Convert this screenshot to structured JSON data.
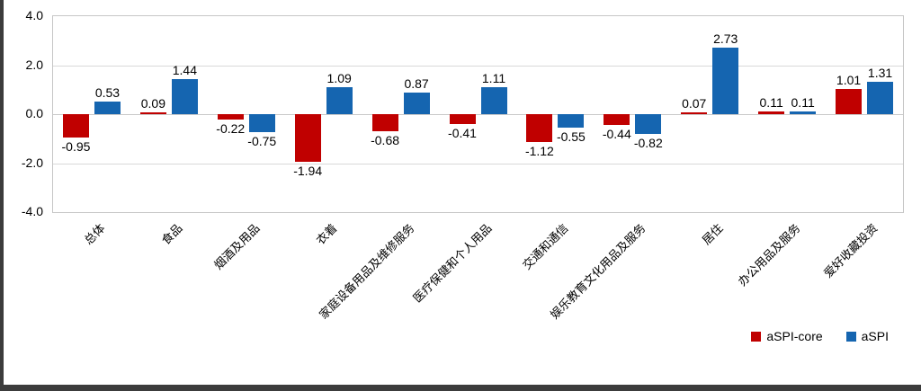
{
  "chart_data": {
    "type": "bar",
    "title": "",
    "xlabel": "",
    "ylabel": "",
    "ylim": [
      -4.0,
      4.0
    ],
    "yticks": [
      4.0,
      2.0,
      0.0,
      -2.0,
      -4.0
    ],
    "ytick_labels": [
      "4.0",
      "2.0",
      "0.0",
      "-2.0",
      "-4.0"
    ],
    "grid": true,
    "legend_position": "bottom-right",
    "categories": [
      "总体",
      "食品",
      "烟酒及用品",
      "衣着",
      "家庭设备用品及维修服务",
      "医疗保健和个人用品",
      "交通和通信",
      "娱乐教育文化用品及服务",
      "居住",
      "办公用品及服务",
      "爱好收藏投资"
    ],
    "series": [
      {
        "name": "aSPI-core",
        "color": "#C00000",
        "values": [
          -0.95,
          0.09,
          -0.22,
          -1.94,
          -0.68,
          -0.41,
          -1.12,
          -0.44,
          0.07,
          0.11,
          1.01
        ]
      },
      {
        "name": "aSPI",
        "color": "#1565B0",
        "values": [
          0.53,
          1.44,
          -0.75,
          1.09,
          0.87,
          1.11,
          -0.55,
          -0.82,
          2.73,
          0.11,
          1.31
        ]
      }
    ]
  },
  "legend": {
    "items": [
      {
        "label": "aSPI-core",
        "color": "#C00000"
      },
      {
        "label": "aSPI",
        "color": "#1565B0"
      }
    ]
  }
}
